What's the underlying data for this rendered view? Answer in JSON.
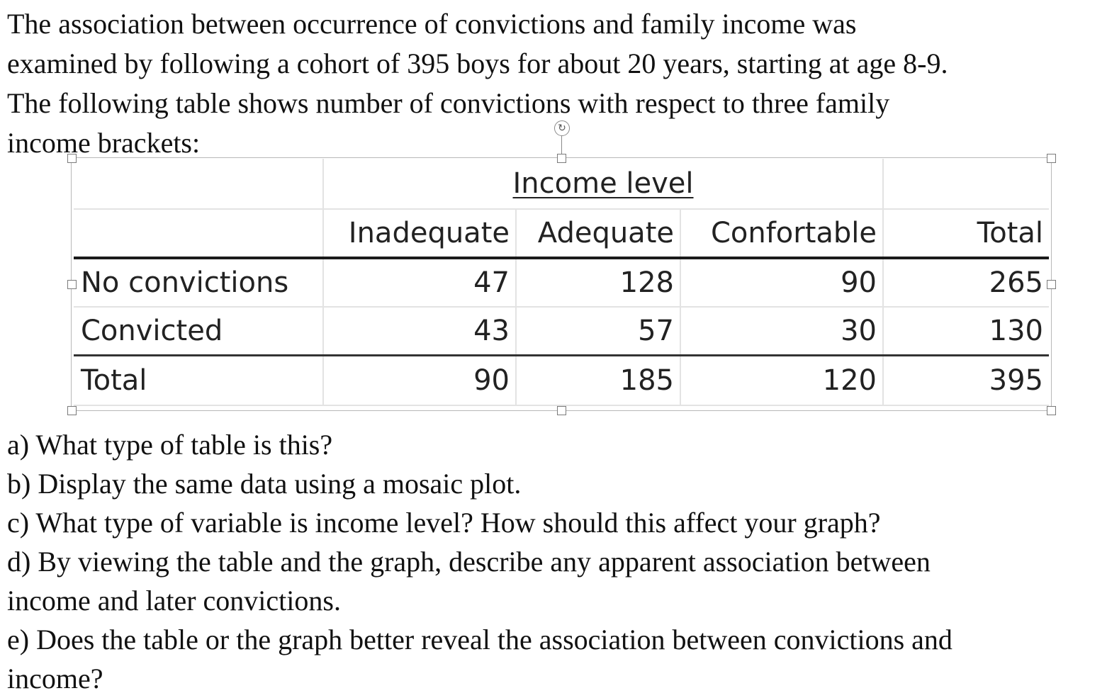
{
  "intro": {
    "lines": [
      "The association between occurrence of convictions and family income was",
      "examined by following a cohort of 395 boys for about 20 years, starting at age 8-9.",
      "The following table shows number of convictions with respect to three family",
      "income brackets:"
    ]
  },
  "table": {
    "title": "Income level",
    "headers": [
      "",
      "Inadequate",
      "Adequate",
      "Confortable",
      "Total"
    ],
    "rows": [
      [
        "No convictions",
        "47",
        "128",
        "90",
        "265"
      ],
      [
        "Convicted",
        "43",
        "57",
        "30",
        "130"
      ],
      [
        "Total",
        "90",
        "185",
        "120",
        "395"
      ]
    ]
  },
  "icons": {
    "rotate": "rotate-icon",
    "rotate_glyph": "↻"
  },
  "questions": {
    "lines": [
      "a) What type of table is this?",
      "b) Display the same data using a mosaic plot.",
      "c) What type of variable is income level? How should this affect your graph?",
      "d) By viewing the table and the graph, describe any apparent association between",
      "income and later convictions.",
      "e) Does the table or the graph better reveal the association between convictions and",
      "income?"
    ]
  }
}
